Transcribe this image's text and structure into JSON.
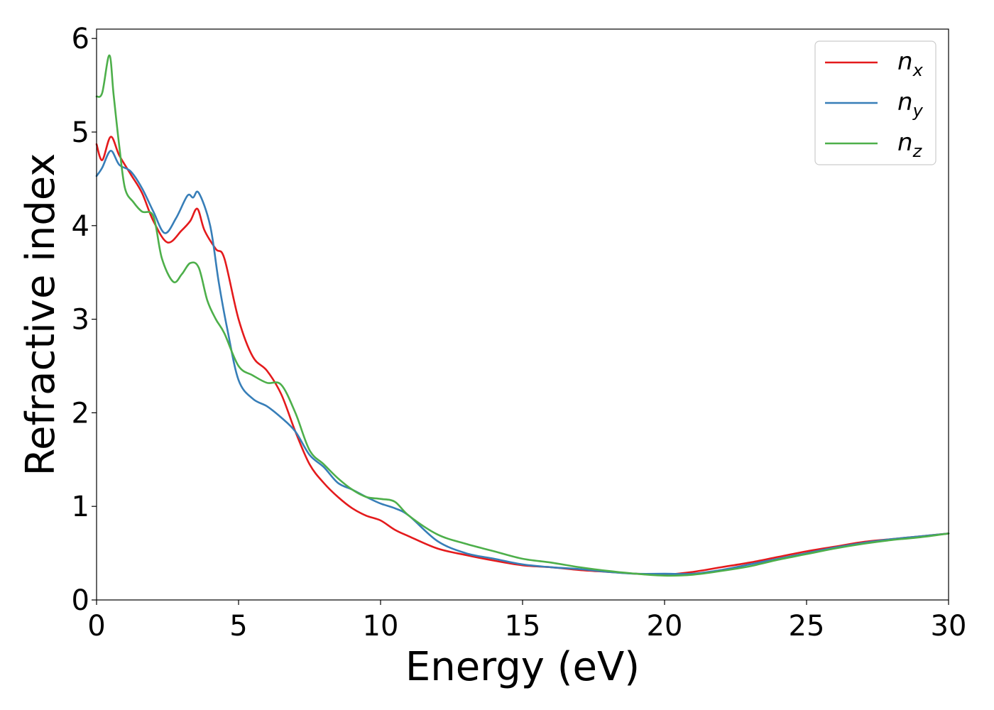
{
  "chart_data": {
    "type": "line",
    "title": "",
    "xlabel": "Energy (eV)",
    "ylabel": "Refractive index",
    "xlim": [
      0,
      30
    ],
    "ylim": [
      0,
      6.1
    ],
    "xticks": [
      0,
      5,
      10,
      15,
      20,
      25,
      30
    ],
    "yticks": [
      0,
      1,
      2,
      3,
      4,
      5,
      6
    ],
    "grid": false,
    "legend_position": "top-right",
    "series": [
      {
        "name": "n_x",
        "legend_base": "n",
        "legend_sub": "x",
        "color": "#e41a1c",
        "x": [
          0,
          0.2,
          0.5,
          0.8,
          1.2,
          1.6,
          2.0,
          2.5,
          3.0,
          3.3,
          3.55,
          3.8,
          4.2,
          4.5,
          5.0,
          5.5,
          6.0,
          6.5,
          7.0,
          7.5,
          8.0,
          8.5,
          9.0,
          9.5,
          10.0,
          10.5,
          11.0,
          12.0,
          13.0,
          14.0,
          15.0,
          16.0,
          17.0,
          18.0,
          19.0,
          20.0,
          21.0,
          22.0,
          23.0,
          24.0,
          25.0,
          26.0,
          27.0,
          28.0,
          29.0,
          30.0
        ],
        "y": [
          4.87,
          4.7,
          4.95,
          4.75,
          4.55,
          4.35,
          4.05,
          3.82,
          3.95,
          4.05,
          4.18,
          3.95,
          3.75,
          3.65,
          3.0,
          2.6,
          2.45,
          2.2,
          1.8,
          1.45,
          1.25,
          1.1,
          0.98,
          0.9,
          0.85,
          0.75,
          0.68,
          0.55,
          0.48,
          0.42,
          0.37,
          0.35,
          0.32,
          0.3,
          0.28,
          0.27,
          0.3,
          0.35,
          0.4,
          0.46,
          0.52,
          0.57,
          0.62,
          0.65,
          0.68,
          0.71
        ]
      },
      {
        "name": "n_y",
        "legend_base": "n",
        "legend_sub": "y",
        "color": "#377eb8",
        "x": [
          0,
          0.2,
          0.5,
          0.8,
          1.2,
          1.6,
          2.0,
          2.4,
          2.8,
          3.2,
          3.4,
          3.6,
          4.0,
          4.3,
          4.6,
          5.0,
          5.5,
          6.0,
          6.5,
          7.0,
          7.5,
          8.0,
          8.5,
          9.0,
          9.5,
          10.0,
          10.5,
          11.0,
          12.0,
          13.0,
          14.0,
          15.0,
          16.0,
          17.0,
          18.0,
          19.0,
          20.0,
          21.0,
          22.0,
          23.0,
          24.0,
          25.0,
          26.0,
          27.0,
          28.0,
          29.0,
          30.0
        ],
        "y": [
          4.53,
          4.62,
          4.8,
          4.65,
          4.58,
          4.4,
          4.15,
          3.92,
          4.08,
          4.32,
          4.3,
          4.35,
          4.0,
          3.4,
          2.9,
          2.35,
          2.15,
          2.07,
          1.95,
          1.8,
          1.55,
          1.42,
          1.25,
          1.18,
          1.1,
          1.03,
          0.98,
          0.9,
          0.63,
          0.5,
          0.44,
          0.38,
          0.35,
          0.33,
          0.3,
          0.28,
          0.28,
          0.28,
          0.32,
          0.38,
          0.44,
          0.5,
          0.56,
          0.61,
          0.65,
          0.68,
          0.71
        ]
      },
      {
        "name": "n_z",
        "legend_base": "n",
        "legend_sub": "z",
        "color": "#4daf4a",
        "x": [
          0,
          0.2,
          0.45,
          0.6,
          0.8,
          1.0,
          1.3,
          1.6,
          2.0,
          2.3,
          2.7,
          3.0,
          3.3,
          3.6,
          3.9,
          4.2,
          4.5,
          5.0,
          5.5,
          6.0,
          6.5,
          7.0,
          7.5,
          8.0,
          8.5,
          9.0,
          9.5,
          10.0,
          10.5,
          11.0,
          12.0,
          13.0,
          14.0,
          15.0,
          16.0,
          17.0,
          18.0,
          19.0,
          20.0,
          21.0,
          22.0,
          23.0,
          24.0,
          25.0,
          26.0,
          27.0,
          28.0,
          29.0,
          30.0
        ],
        "y": [
          5.38,
          5.42,
          5.82,
          5.4,
          4.85,
          4.4,
          4.25,
          4.15,
          4.1,
          3.65,
          3.4,
          3.48,
          3.6,
          3.55,
          3.2,
          3.0,
          2.85,
          2.5,
          2.4,
          2.32,
          2.3,
          2.0,
          1.6,
          1.45,
          1.3,
          1.18,
          1.1,
          1.08,
          1.05,
          0.9,
          0.7,
          0.6,
          0.52,
          0.44,
          0.4,
          0.35,
          0.31,
          0.28,
          0.26,
          0.27,
          0.31,
          0.36,
          0.43,
          0.49,
          0.55,
          0.6,
          0.64,
          0.67,
          0.71
        ]
      }
    ]
  }
}
